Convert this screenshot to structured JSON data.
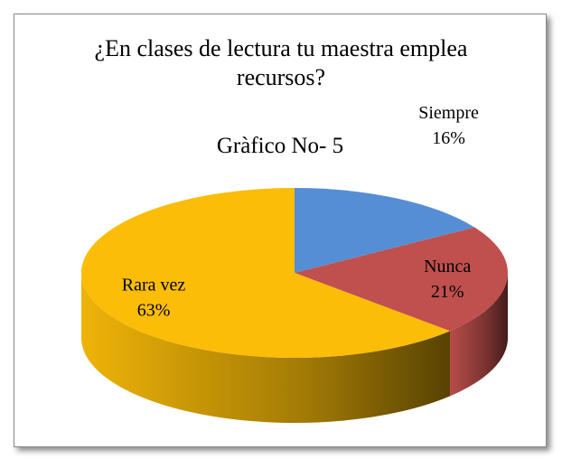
{
  "chart_data": {
    "type": "pie",
    "title": "¿En clases de lectura tu maestra emplea recursos?",
    "subtitle": "Gràfico No- 5",
    "categories": [
      "Siempre",
      "Nunca",
      "Rara vez"
    ],
    "values": [
      16,
      21,
      63
    ],
    "value_labels": [
      "16%",
      "21%",
      "63%"
    ],
    "colors": [
      "#558ed5",
      "#c0504d",
      "#fbbd08"
    ],
    "legend": false
  }
}
